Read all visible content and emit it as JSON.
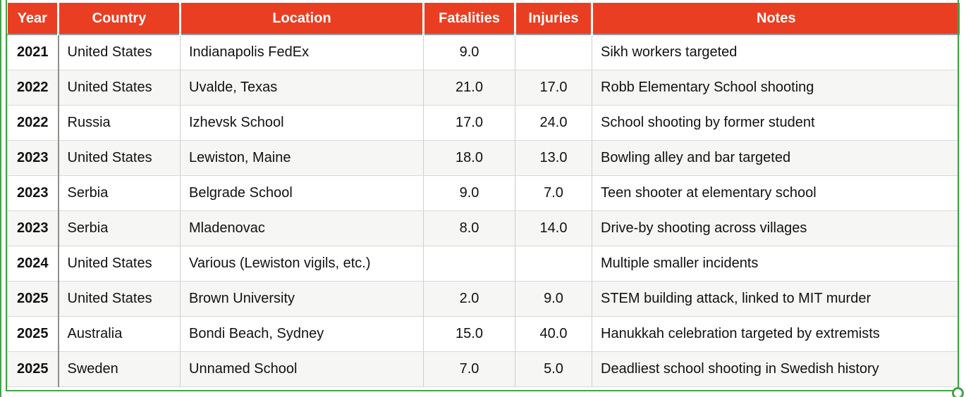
{
  "colors": {
    "header_bg": "#EA3E23",
    "header_text": "#FFFFFF",
    "row_stripe": "#F6F6F5",
    "row_white": "#FFFFFF",
    "selection_green": "#44A248",
    "header_underline": "#9B9B99",
    "year_divider": "#8E8E8C",
    "grid_line": "#D9D9D7",
    "body_text": "#111111"
  },
  "chart_data": {
    "type": "table",
    "title": "",
    "columns": [
      "Year",
      "Country",
      "Location",
      "Fatalities",
      "Injuries",
      "Notes"
    ],
    "rows": [
      [
        "2021",
        "United States",
        "Indianapolis FedEx",
        "9.0",
        "",
        "Sikh workers targeted"
      ],
      [
        "2022",
        "United States",
        "Uvalde, Texas",
        "21.0",
        "17.0",
        "Robb Elementary School shooting"
      ],
      [
        "2022",
        "Russia",
        "Izhevsk School",
        "17.0",
        "24.0",
        "School shooting by former student"
      ],
      [
        "2023",
        "United States",
        "Lewiston, Maine",
        "18.0",
        "13.0",
        "Bowling alley and bar targeted"
      ],
      [
        "2023",
        "Serbia",
        "Belgrade School",
        "9.0",
        "7.0",
        "Teen shooter at elementary school"
      ],
      [
        "2023",
        "Serbia",
        "Mladenovac",
        "8.0",
        "14.0",
        "Drive-by shooting across villages"
      ],
      [
        "2024",
        "United States",
        "Various (Lewiston vigils, etc.)",
        "",
        "",
        "Multiple smaller incidents"
      ],
      [
        "2025",
        "United States",
        "Brown University",
        "2.0",
        "9.0",
        "STEM building attack, linked to MIT murder"
      ],
      [
        "2025",
        "Australia",
        "Bondi Beach, Sydney",
        "15.0",
        "40.0",
        "Hanukkah celebration targeted by extremists"
      ],
      [
        "2025",
        "Sweden",
        "Unnamed School",
        "7.0",
        "5.0",
        "Deadliest school shooting in Swedish history"
      ]
    ],
    "layout": {
      "striped": true,
      "header_style": "red-background-white-bold-centered",
      "row_header_column": "Year",
      "numeric_columns_centered": [
        "Fatalities",
        "Injuries"
      ]
    }
  }
}
